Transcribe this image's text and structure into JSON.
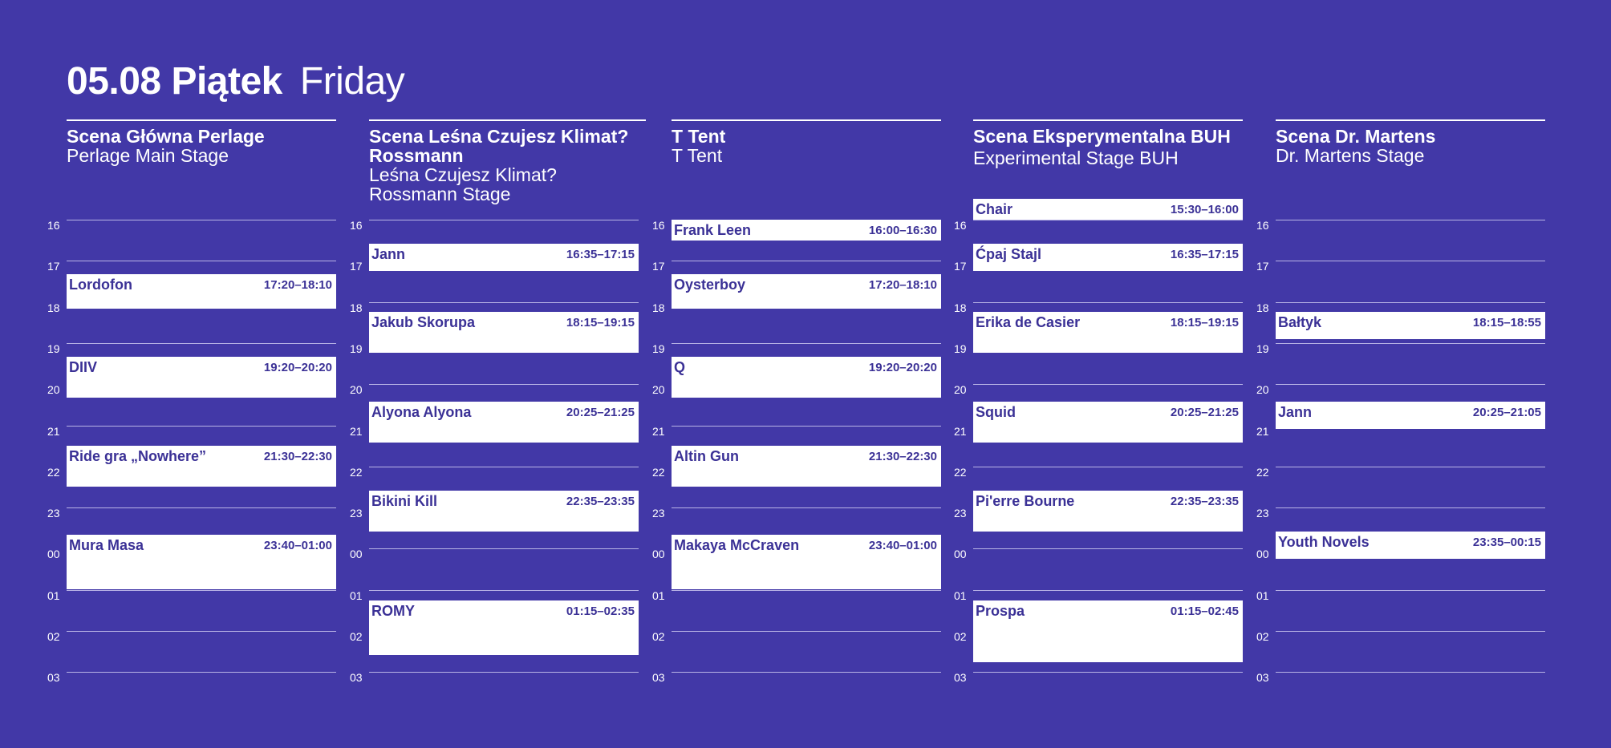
{
  "header": {
    "title_pl": "05.08 Piątek",
    "title_en": "Friday"
  },
  "hours": [
    "16",
    "17",
    "18",
    "19",
    "20",
    "21",
    "22",
    "23",
    "00",
    "01",
    "02",
    "03"
  ],
  "stages": [
    {
      "name_pl": "Scena Główna Perlage",
      "name_en": "Perlage Main Stage",
      "slots": [
        {
          "artist": "Lordofon",
          "time": "17:20–18:10"
        },
        {
          "artist": "DIIV",
          "time": "19:20–20:20"
        },
        {
          "artist": "Ride gra „Nowhere”",
          "time": "21:30–22:30"
        },
        {
          "artist": "Mura Masa",
          "time": "23:40–01:00"
        }
      ]
    },
    {
      "name_pl": "Scena Leśna Czujesz Klimat? Rossmann",
      "name_en": "Leśna Czujesz Klimat? Rossmann Stage",
      "slots": [
        {
          "artist": "Jann",
          "time": "16:35–17:15"
        },
        {
          "artist": "Jakub Skorupa",
          "time": "18:15–19:15"
        },
        {
          "artist": "Alyona Alyona",
          "time": "20:25–21:25"
        },
        {
          "artist": "Bikini Kill",
          "time": "22:35–23:35"
        },
        {
          "artist": "ROMY",
          "time": "01:15–02:35"
        }
      ]
    },
    {
      "name_pl": "T Tent",
      "name_en": "T Tent",
      "slots": [
        {
          "artist": "Frank Leen",
          "time": "16:00–16:30"
        },
        {
          "artist": "Oysterboy",
          "time": "17:20–18:10"
        },
        {
          "artist": "Q",
          "time": "19:20–20:20"
        },
        {
          "artist": "Altin Gun",
          "time": "21:30–22:30"
        },
        {
          "artist": "Makaya McCraven",
          "time": "23:40–01:00"
        }
      ]
    },
    {
      "name_pl": "Scena Eksperymentalna BUH",
      "name_en": "Experimental Stage BUH",
      "slots": [
        {
          "artist": "Chair",
          "time": "15:30–16:00"
        },
        {
          "artist": "Ćpaj Stajl",
          "time": "16:35–17:15"
        },
        {
          "artist": "Erika de Casier",
          "time": "18:15–19:15"
        },
        {
          "artist": "Squid",
          "time": "20:25–21:25"
        },
        {
          "artist": "Pi'erre Bourne",
          "time": "22:35–23:35"
        },
        {
          "artist": "Prospa",
          "time": "01:15–02:45"
        }
      ]
    },
    {
      "name_pl": "Scena Dr. Martens",
      "name_en": "Dr. Martens Stage",
      "slots": [
        {
          "artist": "Bałtyk",
          "time": "18:15–18:55"
        },
        {
          "artist": "Jann",
          "time": "20:25–21:05"
        },
        {
          "artist": "Youth Novels",
          "time": "23:35–00:15"
        }
      ]
    }
  ]
}
